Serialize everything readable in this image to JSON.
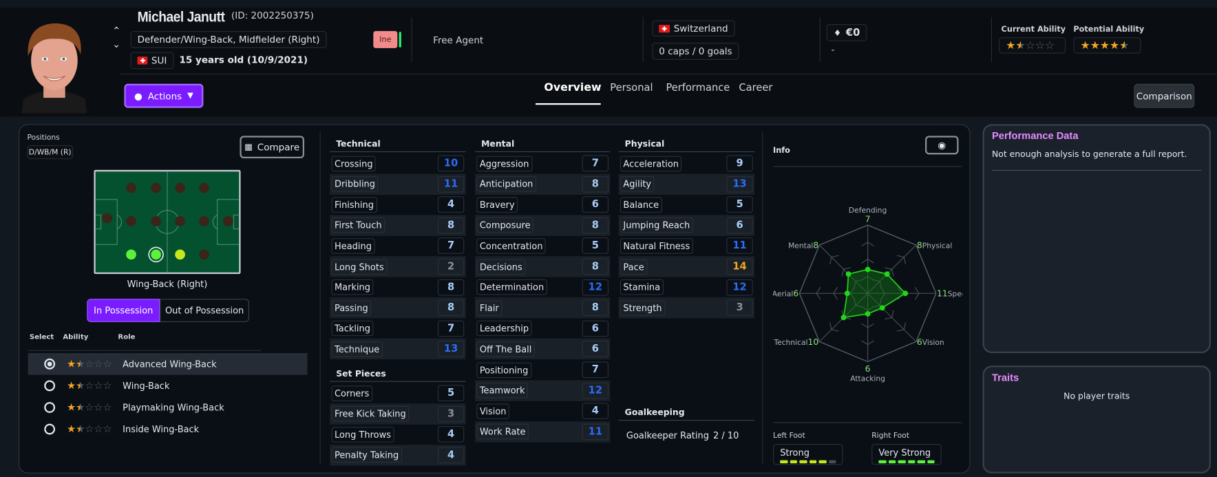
{
  "player": {
    "name": "Michael Janutt",
    "id_text": "(ID: 2002250375)",
    "positions_text": "Defender/Wing-Back, Midfielder (Right)",
    "nation_code": "SUI",
    "age_text": "15 years old (10/9/2021)",
    "status_badge": "Ine",
    "contract": "Free Agent",
    "country": "Switzerland",
    "caps": "0 caps / 0 goals",
    "value": "€0",
    "wage": "-",
    "current_ability_label": "Current Ability",
    "current_ability_stars": 1.5,
    "potential_ability_label": "Potential Ability",
    "potential_ability_stars": 4.5
  },
  "actions_label": "Actions",
  "tabs": [
    {
      "label": "Overview",
      "active": true
    },
    {
      "label": "Personal"
    },
    {
      "label": "Performance"
    },
    {
      "label": "Career"
    }
  ],
  "comparison_label": "Comparison",
  "positions": {
    "label": "Positions",
    "tag": "D/WB/M (R)",
    "compare_label": "Compare",
    "selected_position": "Wing-Back (Right)",
    "toggle": [
      "In Possession",
      "Out of Possession"
    ],
    "table_headers": [
      "Select",
      "Ability",
      "Role"
    ],
    "roles": [
      {
        "name": "Advanced Wing-Back",
        "stars": 1.5,
        "selected": true
      },
      {
        "name": "Wing-Back",
        "stars": 1.5
      },
      {
        "name": "Playmaking Wing-Back",
        "stars": 1.5
      },
      {
        "name": "Inside Wing-Back",
        "stars": 1.5
      }
    ]
  },
  "technical": {
    "title": "Technical",
    "attrs": [
      {
        "name": "Crossing",
        "value": 10
      },
      {
        "name": "Dribbling",
        "value": 11
      },
      {
        "name": "Finishing",
        "value": 4
      },
      {
        "name": "First Touch",
        "value": 8
      },
      {
        "name": "Heading",
        "value": 7
      },
      {
        "name": "Long Shots",
        "value": 2
      },
      {
        "name": "Marking",
        "value": 8
      },
      {
        "name": "Passing",
        "value": 8
      },
      {
        "name": "Tackling",
        "value": 7
      },
      {
        "name": "Technique",
        "value": 13
      }
    ]
  },
  "set_pieces": {
    "title": "Set Pieces",
    "attrs": [
      {
        "name": "Corners",
        "value": 5
      },
      {
        "name": "Free Kick Taking",
        "value": 3
      },
      {
        "name": "Long Throws",
        "value": 4
      },
      {
        "name": "Penalty Taking",
        "value": 4
      }
    ]
  },
  "mental": {
    "title": "Mental",
    "attrs": [
      {
        "name": "Aggression",
        "value": 7
      },
      {
        "name": "Anticipation",
        "value": 8
      },
      {
        "name": "Bravery",
        "value": 6
      },
      {
        "name": "Composure",
        "value": 8
      },
      {
        "name": "Concentration",
        "value": 5
      },
      {
        "name": "Decisions",
        "value": 8
      },
      {
        "name": "Determination",
        "value": 12
      },
      {
        "name": "Flair",
        "value": 8
      },
      {
        "name": "Leadership",
        "value": 6
      },
      {
        "name": "Off The Ball",
        "value": 6
      },
      {
        "name": "Positioning",
        "value": 7
      },
      {
        "name": "Teamwork",
        "value": 12
      },
      {
        "name": "Vision",
        "value": 4
      },
      {
        "name": "Work Rate",
        "value": 11
      }
    ]
  },
  "physical": {
    "title": "Physical",
    "attrs": [
      {
        "name": "Acceleration",
        "value": 9
      },
      {
        "name": "Agility",
        "value": 13
      },
      {
        "name": "Balance",
        "value": 5
      },
      {
        "name": "Jumping Reach",
        "value": 6
      },
      {
        "name": "Natural Fitness",
        "value": 11
      },
      {
        "name": "Pace",
        "value": 14
      },
      {
        "name": "Stamina",
        "value": 12
      },
      {
        "name": "Strength",
        "value": 3
      }
    ]
  },
  "goalkeeping": {
    "title": "Goalkeeping",
    "rating_label": "Goalkeeper Rating",
    "rating_value": "2 / 10"
  },
  "info": {
    "title": "Info",
    "left_foot_label": "Left Foot",
    "left_foot_value": "Strong",
    "left_foot_level": 5,
    "right_foot_label": "Right Foot",
    "right_foot_value": "Very Strong",
    "right_foot_level": 6,
    "foot_max": 6
  },
  "chart_data": {
    "type": "radar",
    "max": 20,
    "axes": [
      "Defending",
      "Physical",
      "Speed",
      "Vision",
      "Attacking",
      "Technical",
      "Aerial",
      "Mental"
    ],
    "values": [
      7,
      8,
      11,
      6,
      6,
      10,
      6,
      8
    ]
  },
  "performance": {
    "title": "Performance Data",
    "text": "Not enough analysis to generate a full report."
  },
  "traits": {
    "title": "Traits",
    "text": "No player traits"
  },
  "colors": {
    "accent": "#7a1cff",
    "panel_title": "#e58cff",
    "radar": "#22d61a"
  }
}
